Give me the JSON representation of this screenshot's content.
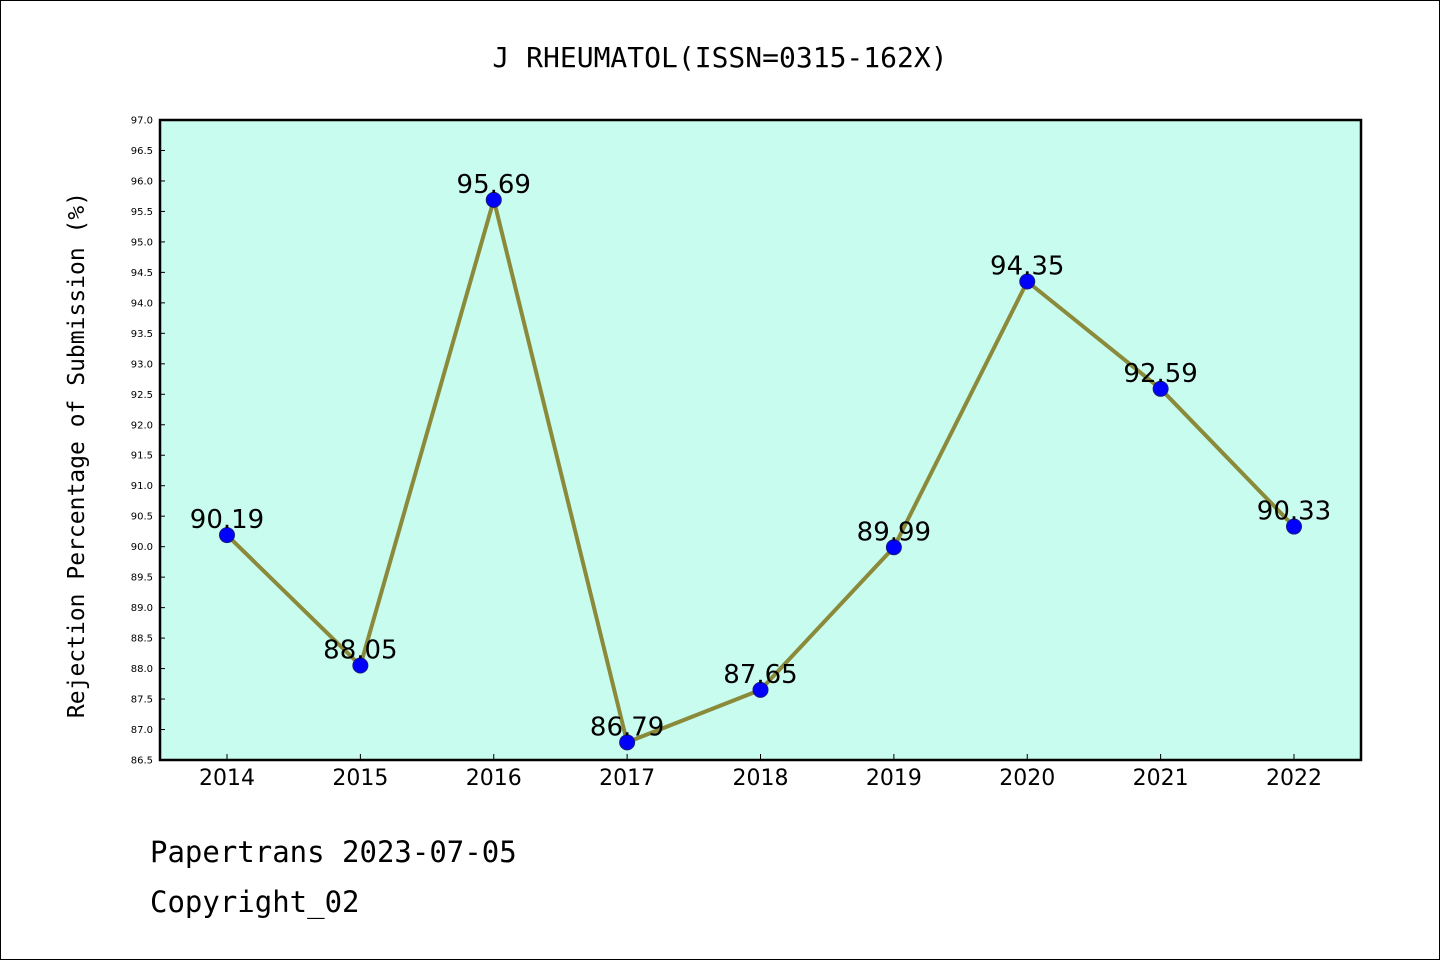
{
  "chart_data": {
    "type": "line",
    "title": "J RHEUMATOL(ISSN=0315-162X)",
    "xlabel": "",
    "ylabel": "Rejection Percentage of Submission (%)",
    "categories": [
      "2014",
      "2015",
      "2016",
      "2017",
      "2018",
      "2019",
      "2020",
      "2021",
      "2022"
    ],
    "series": [
      {
        "values": [
          90.19,
          88.05,
          95.69,
          86.79,
          87.65,
          89.99,
          94.35,
          92.59,
          90.33
        ],
        "labels": [
          "90.19",
          "88.05",
          "95.69",
          "86.79",
          "87.65",
          "89.99",
          "94.35",
          "92.59",
          "90.33"
        ]
      }
    ],
    "ylim": [
      86.5,
      97.0
    ],
    "ytick_step": 0.5,
    "grid": false,
    "legend": "none",
    "colors": {
      "plot_background": "#c8fcee",
      "line": "#8b8a3a",
      "marker": "#0000ff"
    }
  },
  "footer": {
    "line1": "Papertrans 2023-07-05",
    "line2": "Copyright_02"
  }
}
